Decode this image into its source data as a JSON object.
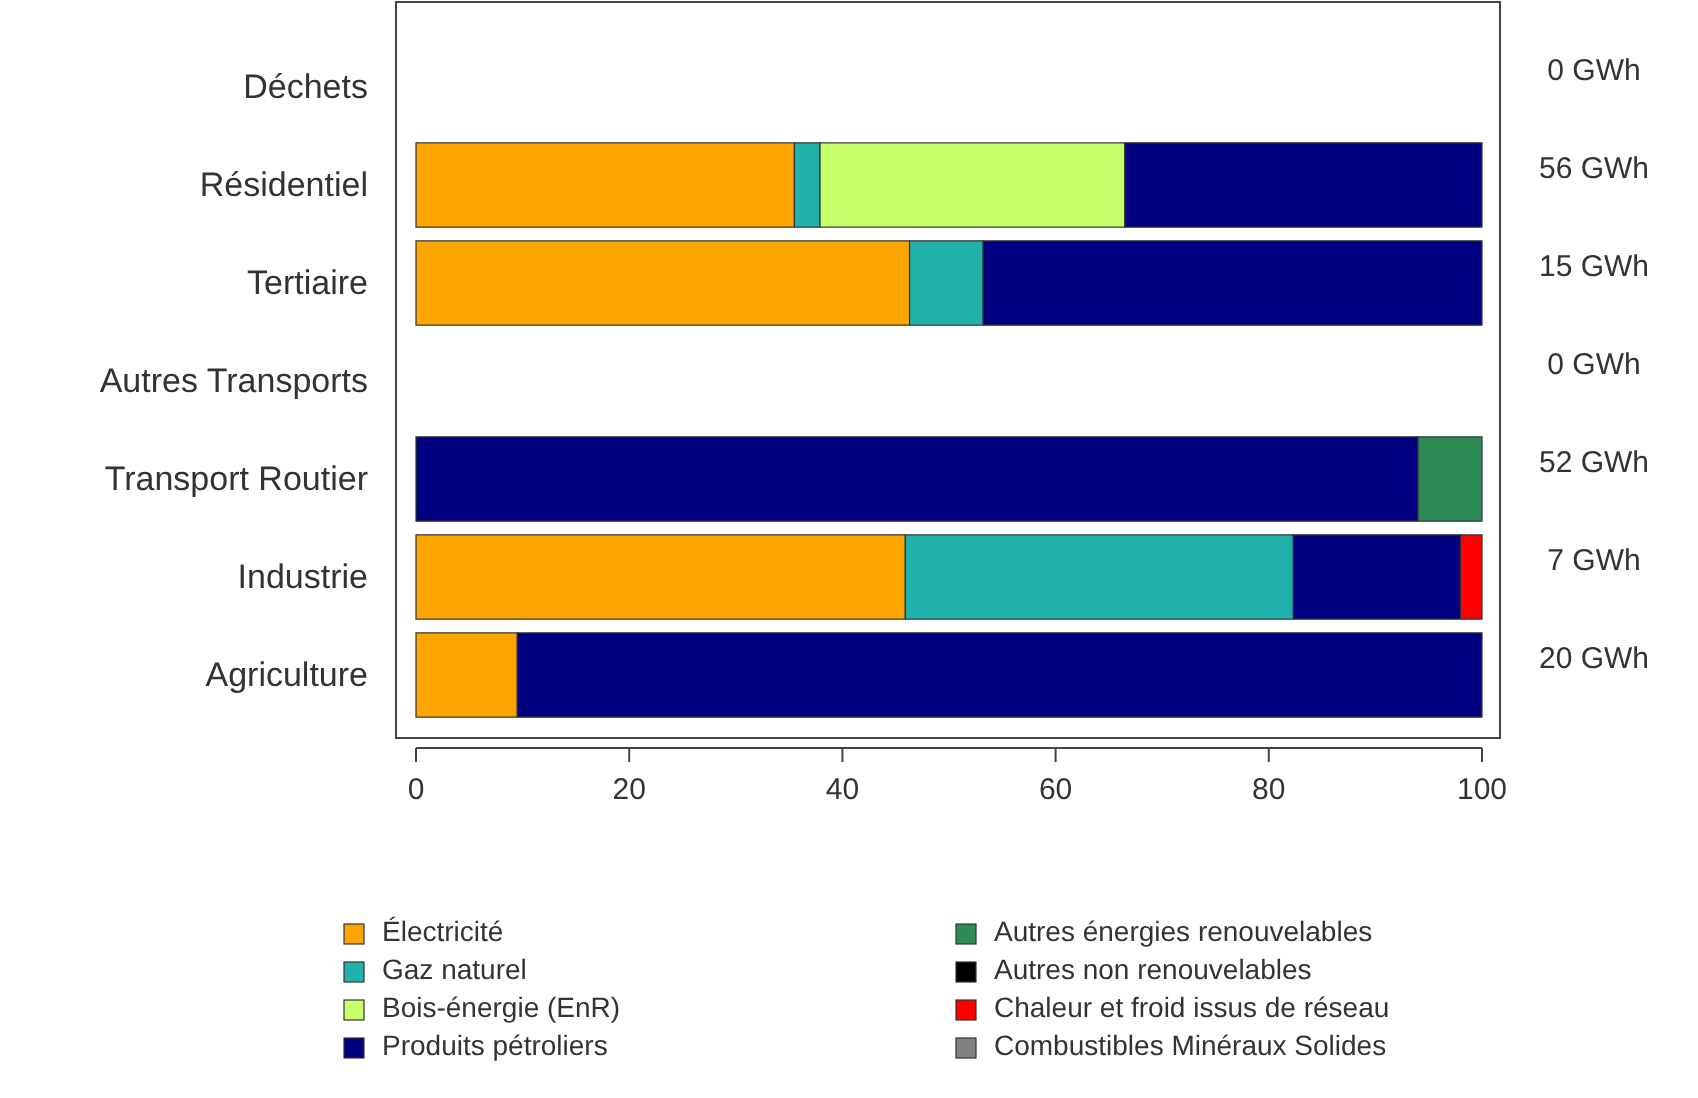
{
  "chart_data": {
    "type": "bar",
    "orientation": "horizontal",
    "stacked": true,
    "categories": [
      "Déchets",
      "Résidentiel",
      "Tertiaire",
      "Autres Transports",
      "Transport Routier",
      "Industrie",
      "Agriculture"
    ],
    "series": [
      {
        "name": "Électricité",
        "color": "#ffa500",
        "values": [
          0,
          35.5,
          46.3,
          0,
          0,
          45.9,
          9.5
        ]
      },
      {
        "name": "Gaz naturel",
        "color": "#20b2aa",
        "values": [
          0,
          2.4,
          6.9,
          0,
          0,
          36.4,
          0
        ]
      },
      {
        "name": "Bois-énergie (EnR)",
        "color": "#c6ff6a",
        "values": [
          0,
          28.6,
          0,
          0,
          0,
          0,
          0
        ]
      },
      {
        "name": "Produits pétroliers",
        "color": "#000080",
        "values": [
          0,
          33.5,
          46.8,
          0,
          94.0,
          15.7,
          90.5
        ]
      },
      {
        "name": "Autres énergies renouvelables",
        "color": "#2e8b57",
        "values": [
          0,
          0,
          0,
          0,
          6.0,
          0,
          0
        ]
      },
      {
        "name": "Autres non renouvelables",
        "color": "#000000",
        "values": [
          0,
          0,
          0,
          0,
          0,
          0,
          0
        ]
      },
      {
        "name": "Chaleur et froid issus de réseau",
        "color": "#ff0000",
        "values": [
          0,
          0,
          0,
          0,
          0,
          2.0,
          0
        ]
      },
      {
        "name": "Combustibles Minéraux Solides",
        "color": "#808080",
        "values": [
          0,
          0,
          0,
          0,
          0,
          0,
          0
        ]
      }
    ],
    "annotations": [
      "0 GWh",
      "56 GWh",
      "15 GWh",
      "0 GWh",
      "52 GWh",
      "7 GWh",
      "20 GWh"
    ],
    "xlim": [
      0,
      100
    ],
    "xticks": [
      0,
      20,
      40,
      60,
      80,
      100
    ],
    "grid": false,
    "legend": "bottom"
  }
}
